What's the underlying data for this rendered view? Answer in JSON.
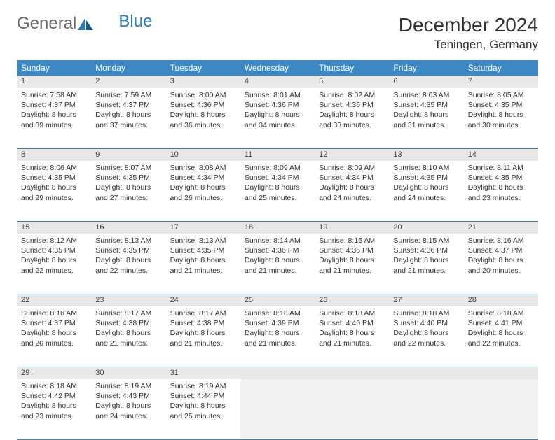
{
  "logo": {
    "text1": "General",
    "text2": "Blue"
  },
  "title": "December 2024",
  "location": "Teningen, Germany",
  "header_bg": "#3b88c4",
  "border_color": "#4a7ba0",
  "daynum_bg": "#e8e8e8",
  "weekdays": [
    "Sunday",
    "Monday",
    "Tuesday",
    "Wednesday",
    "Thursday",
    "Friday",
    "Saturday"
  ],
  "weeks": [
    [
      {
        "day": "1",
        "sunrise": "Sunrise: 7:58 AM",
        "sunset": "Sunset: 4:37 PM",
        "daylight1": "Daylight: 8 hours",
        "daylight2": "and 39 minutes."
      },
      {
        "day": "2",
        "sunrise": "Sunrise: 7:59 AM",
        "sunset": "Sunset: 4:37 PM",
        "daylight1": "Daylight: 8 hours",
        "daylight2": "and 37 minutes."
      },
      {
        "day": "3",
        "sunrise": "Sunrise: 8:00 AM",
        "sunset": "Sunset: 4:36 PM",
        "daylight1": "Daylight: 8 hours",
        "daylight2": "and 36 minutes."
      },
      {
        "day": "4",
        "sunrise": "Sunrise: 8:01 AM",
        "sunset": "Sunset: 4:36 PM",
        "daylight1": "Daylight: 8 hours",
        "daylight2": "and 34 minutes."
      },
      {
        "day": "5",
        "sunrise": "Sunrise: 8:02 AM",
        "sunset": "Sunset: 4:36 PM",
        "daylight1": "Daylight: 8 hours",
        "daylight2": "and 33 minutes."
      },
      {
        "day": "6",
        "sunrise": "Sunrise: 8:03 AM",
        "sunset": "Sunset: 4:35 PM",
        "daylight1": "Daylight: 8 hours",
        "daylight2": "and 31 minutes."
      },
      {
        "day": "7",
        "sunrise": "Sunrise: 8:05 AM",
        "sunset": "Sunset: 4:35 PM",
        "daylight1": "Daylight: 8 hours",
        "daylight2": "and 30 minutes."
      }
    ],
    [
      {
        "day": "8",
        "sunrise": "Sunrise: 8:06 AM",
        "sunset": "Sunset: 4:35 PM",
        "daylight1": "Daylight: 8 hours",
        "daylight2": "and 29 minutes."
      },
      {
        "day": "9",
        "sunrise": "Sunrise: 8:07 AM",
        "sunset": "Sunset: 4:35 PM",
        "daylight1": "Daylight: 8 hours",
        "daylight2": "and 27 minutes."
      },
      {
        "day": "10",
        "sunrise": "Sunrise: 8:08 AM",
        "sunset": "Sunset: 4:34 PM",
        "daylight1": "Daylight: 8 hours",
        "daylight2": "and 26 minutes."
      },
      {
        "day": "11",
        "sunrise": "Sunrise: 8:09 AM",
        "sunset": "Sunset: 4:34 PM",
        "daylight1": "Daylight: 8 hours",
        "daylight2": "and 25 minutes."
      },
      {
        "day": "12",
        "sunrise": "Sunrise: 8:09 AM",
        "sunset": "Sunset: 4:34 PM",
        "daylight1": "Daylight: 8 hours",
        "daylight2": "and 24 minutes."
      },
      {
        "day": "13",
        "sunrise": "Sunrise: 8:10 AM",
        "sunset": "Sunset: 4:35 PM",
        "daylight1": "Daylight: 8 hours",
        "daylight2": "and 24 minutes."
      },
      {
        "day": "14",
        "sunrise": "Sunrise: 8:11 AM",
        "sunset": "Sunset: 4:35 PM",
        "daylight1": "Daylight: 8 hours",
        "daylight2": "and 23 minutes."
      }
    ],
    [
      {
        "day": "15",
        "sunrise": "Sunrise: 8:12 AM",
        "sunset": "Sunset: 4:35 PM",
        "daylight1": "Daylight: 8 hours",
        "daylight2": "and 22 minutes."
      },
      {
        "day": "16",
        "sunrise": "Sunrise: 8:13 AM",
        "sunset": "Sunset: 4:35 PM",
        "daylight1": "Daylight: 8 hours",
        "daylight2": "and 22 minutes."
      },
      {
        "day": "17",
        "sunrise": "Sunrise: 8:13 AM",
        "sunset": "Sunset: 4:35 PM",
        "daylight1": "Daylight: 8 hours",
        "daylight2": "and 21 minutes."
      },
      {
        "day": "18",
        "sunrise": "Sunrise: 8:14 AM",
        "sunset": "Sunset: 4:36 PM",
        "daylight1": "Daylight: 8 hours",
        "daylight2": "and 21 minutes."
      },
      {
        "day": "19",
        "sunrise": "Sunrise: 8:15 AM",
        "sunset": "Sunset: 4:36 PM",
        "daylight1": "Daylight: 8 hours",
        "daylight2": "and 21 minutes."
      },
      {
        "day": "20",
        "sunrise": "Sunrise: 8:15 AM",
        "sunset": "Sunset: 4:36 PM",
        "daylight1": "Daylight: 8 hours",
        "daylight2": "and 21 minutes."
      },
      {
        "day": "21",
        "sunrise": "Sunrise: 8:16 AM",
        "sunset": "Sunset: 4:37 PM",
        "daylight1": "Daylight: 8 hours",
        "daylight2": "and 20 minutes."
      }
    ],
    [
      {
        "day": "22",
        "sunrise": "Sunrise: 8:16 AM",
        "sunset": "Sunset: 4:37 PM",
        "daylight1": "Daylight: 8 hours",
        "daylight2": "and 20 minutes."
      },
      {
        "day": "23",
        "sunrise": "Sunrise: 8:17 AM",
        "sunset": "Sunset: 4:38 PM",
        "daylight1": "Daylight: 8 hours",
        "daylight2": "and 21 minutes."
      },
      {
        "day": "24",
        "sunrise": "Sunrise: 8:17 AM",
        "sunset": "Sunset: 4:38 PM",
        "daylight1": "Daylight: 8 hours",
        "daylight2": "and 21 minutes."
      },
      {
        "day": "25",
        "sunrise": "Sunrise: 8:18 AM",
        "sunset": "Sunset: 4:39 PM",
        "daylight1": "Daylight: 8 hours",
        "daylight2": "and 21 minutes."
      },
      {
        "day": "26",
        "sunrise": "Sunrise: 8:18 AM",
        "sunset": "Sunset: 4:40 PM",
        "daylight1": "Daylight: 8 hours",
        "daylight2": "and 21 minutes."
      },
      {
        "day": "27",
        "sunrise": "Sunrise: 8:18 AM",
        "sunset": "Sunset: 4:40 PM",
        "daylight1": "Daylight: 8 hours",
        "daylight2": "and 22 minutes."
      },
      {
        "day": "28",
        "sunrise": "Sunrise: 8:18 AM",
        "sunset": "Sunset: 4:41 PM",
        "daylight1": "Daylight: 8 hours",
        "daylight2": "and 22 minutes."
      }
    ],
    [
      {
        "day": "29",
        "sunrise": "Sunrise: 8:18 AM",
        "sunset": "Sunset: 4:42 PM",
        "daylight1": "Daylight: 8 hours",
        "daylight2": "and 23 minutes."
      },
      {
        "day": "30",
        "sunrise": "Sunrise: 8:19 AM",
        "sunset": "Sunset: 4:43 PM",
        "daylight1": "Daylight: 8 hours",
        "daylight2": "and 24 minutes."
      },
      {
        "day": "31",
        "sunrise": "Sunrise: 8:19 AM",
        "sunset": "Sunset: 4:44 PM",
        "daylight1": "Daylight: 8 hours",
        "daylight2": "and 25 minutes."
      },
      {
        "empty": true
      },
      {
        "empty": true
      },
      {
        "empty": true
      },
      {
        "empty": true
      }
    ]
  ]
}
